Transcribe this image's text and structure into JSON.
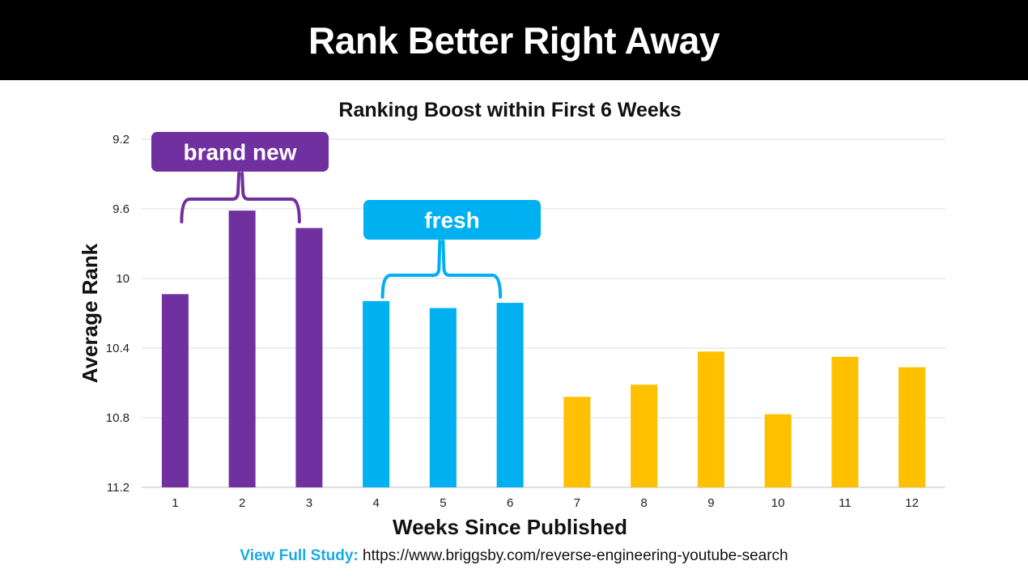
{
  "header": {
    "title": "Rank Better Right Away"
  },
  "footer": {
    "label": "View Full Study:",
    "url": "https://www.briggsby.com/reverse-engineering-youtube-search"
  },
  "annotations": [
    {
      "text": "brand new",
      "color": "#7030a0",
      "from_week": "1",
      "to_week": "3"
    },
    {
      "text": "fresh",
      "color": "#00b0f0",
      "from_week": "4",
      "to_week": "6"
    }
  ],
  "chart_data": {
    "type": "bar",
    "title": "Ranking Boost within First 6 Weeks",
    "xlabel": "Weeks Since Published",
    "ylabel": "Average Rank",
    "y_inverted": true,
    "ylim": [
      9.2,
      11.2
    ],
    "yticks": [
      "9.2",
      "9.6",
      "10",
      "10.4",
      "10.8",
      "11.2"
    ],
    "grid": true,
    "categories": [
      "1",
      "2",
      "3",
      "4",
      "5",
      "6",
      "7",
      "8",
      "9",
      "10",
      "11",
      "12"
    ],
    "values": [
      10.09,
      9.61,
      9.71,
      10.13,
      10.17,
      10.14,
      10.68,
      10.61,
      10.42,
      10.78,
      10.45,
      10.51
    ],
    "colors": [
      "#7030a0",
      "#7030a0",
      "#7030a0",
      "#00b0f0",
      "#00b0f0",
      "#00b0f0",
      "#ffc000",
      "#ffc000",
      "#ffc000",
      "#ffc000",
      "#ffc000",
      "#ffc000"
    ]
  }
}
